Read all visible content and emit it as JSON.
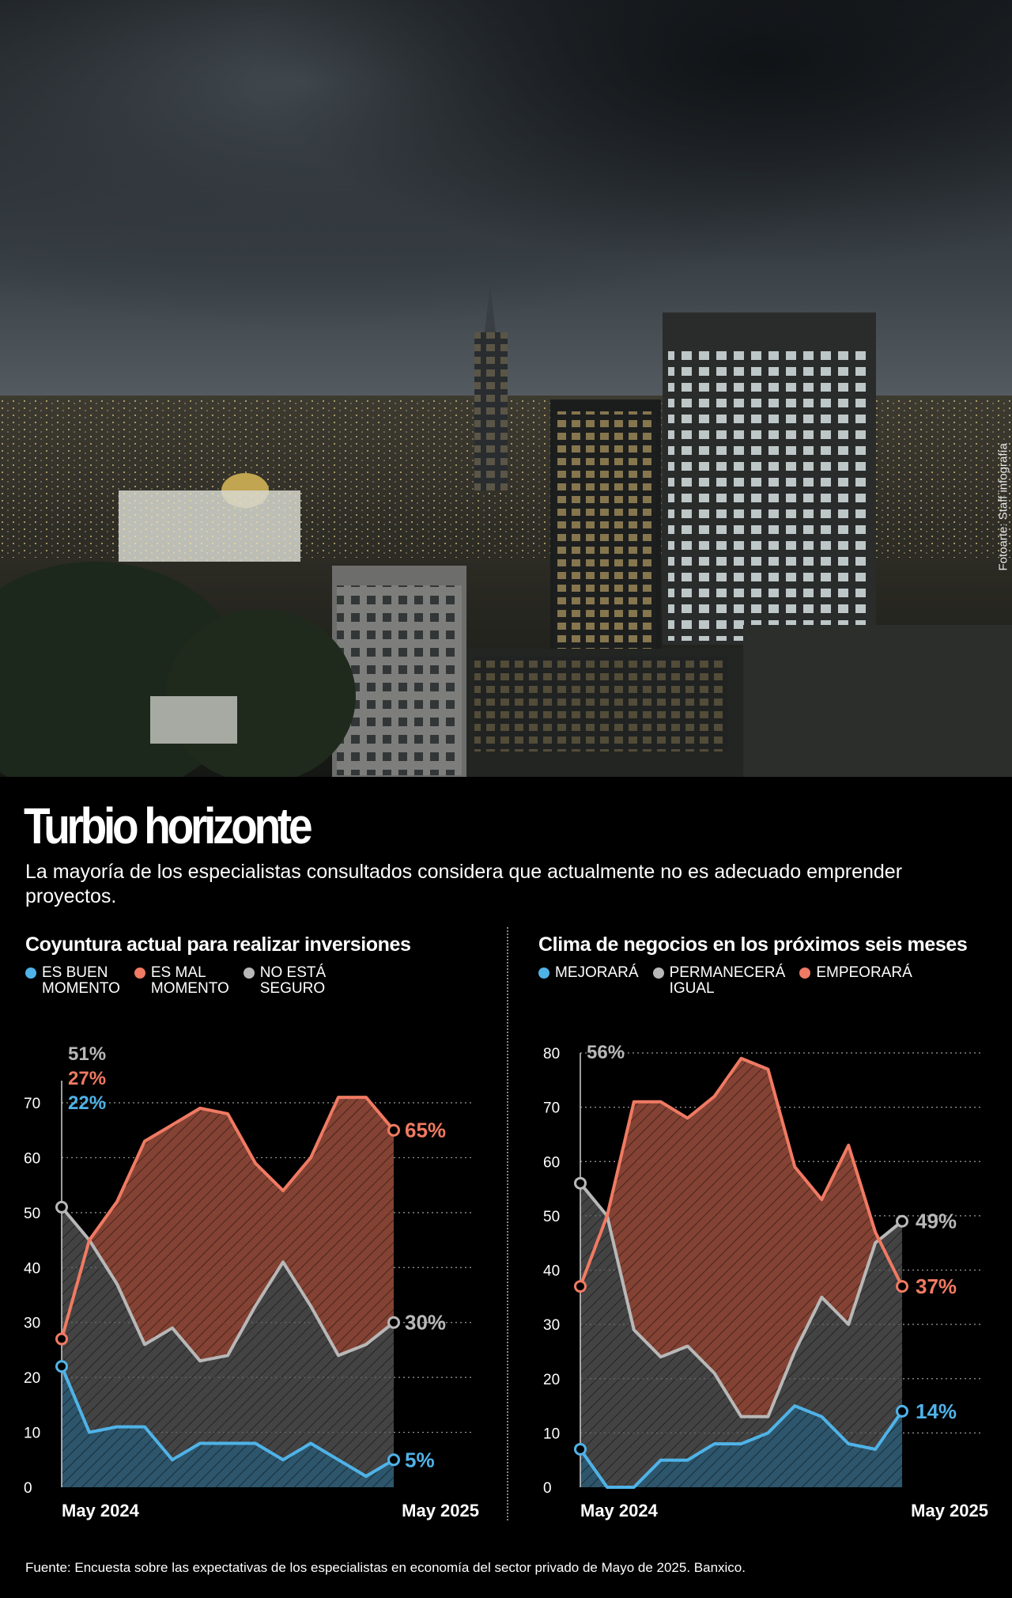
{
  "photo": {
    "credit": "Fotoarte: Staff infografía"
  },
  "header": {
    "title": "Turbio horizonte",
    "subtitle": "La mayoría de los especialistas consultados considera que actualmente no es adecuado emprender proyectos."
  },
  "left": {
    "title": "Coyuntura actual para realizar inversiones",
    "legend": [
      {
        "label1": "ES BUEN",
        "label2": "MOMENTO",
        "color": "#4fb3e8"
      },
      {
        "label1": "ES MAL",
        "label2": "MOMENTO",
        "color": "#f07a63"
      },
      {
        "label1": "NO ESTÁ",
        "label2": "SEGURO",
        "color": "#b8b8b8"
      }
    ]
  },
  "right": {
    "title": "Clima de negocios en los próximos seis meses",
    "legend": [
      {
        "label1": "MEJORARÁ",
        "label2": "",
        "color": "#4fb3e8"
      },
      {
        "label1": "PERMANECERÁ",
        "label2": "IGUAL",
        "color": "#b8b8b8"
      },
      {
        "label1": "EMPEORARÁ",
        "label2": "",
        "color": "#f07a63"
      }
    ]
  },
  "source": "Fuente: Encuesta sobre las expectativas de los especialistas en economía del sector privado de Mayo de 2025. Banxico.",
  "chart_data": [
    {
      "type": "area",
      "title": "Coyuntura actual para realizar inversiones",
      "ylim": [
        0,
        75
      ],
      "yticks": [
        0,
        10,
        20,
        30,
        40,
        50,
        60,
        70
      ],
      "x_start_label": "May 2024",
      "x_end_label": "May 2025",
      "series": [
        {
          "name": "ES BUEN MOMENTO",
          "color": "#4fb3e8",
          "start_label": "22%",
          "end_label": "5%",
          "values": [
            22,
            10,
            11,
            11,
            5,
            8,
            8,
            8,
            5,
            8,
            5,
            2,
            5
          ]
        },
        {
          "name": "ES MAL MOMENTO",
          "color": "#f07a63",
          "start_label": "27%",
          "end_label": "65%",
          "values": [
            27,
            45,
            52,
            63,
            66,
            69,
            68,
            59,
            54,
            60,
            71,
            71,
            65
          ]
        },
        {
          "name": "NO ESTÁ SEGURO",
          "color": "#b8b8b8",
          "start_label": "51%",
          "end_label": "30%",
          "values": [
            51,
            45,
            37,
            26,
            29,
            23,
            24,
            33,
            41,
            33,
            24,
            26,
            30
          ]
        }
      ]
    },
    {
      "type": "area",
      "title": "Clima de negocios en los próximos seis meses",
      "ylim": [
        0,
        82
      ],
      "yticks": [
        0,
        10,
        20,
        30,
        40,
        50,
        60,
        70,
        80
      ],
      "x_start_label": "May 2024",
      "x_end_label": "May 2025",
      "series": [
        {
          "name": "MEJORARÁ",
          "color": "#4fb3e8",
          "start_label": "",
          "end_label": "14%",
          "values": [
            7,
            0,
            0,
            5,
            5,
            8,
            8,
            10,
            15,
            13,
            8,
            7,
            14
          ]
        },
        {
          "name": "PERMANECERÁ IGUAL",
          "color": "#b8b8b8",
          "start_label": "56%",
          "end_label": "49%",
          "values": [
            56,
            50,
            29,
            24,
            26,
            21,
            13,
            13,
            25,
            35,
            30,
            45,
            49
          ]
        },
        {
          "name": "EMPEORARÁ",
          "color": "#f07a63",
          "start_label": "",
          "end_label": "37%",
          "values": [
            37,
            50,
            71,
            71,
            68,
            72,
            79,
            77,
            59,
            53,
            63,
            47,
            37
          ]
        }
      ]
    }
  ]
}
